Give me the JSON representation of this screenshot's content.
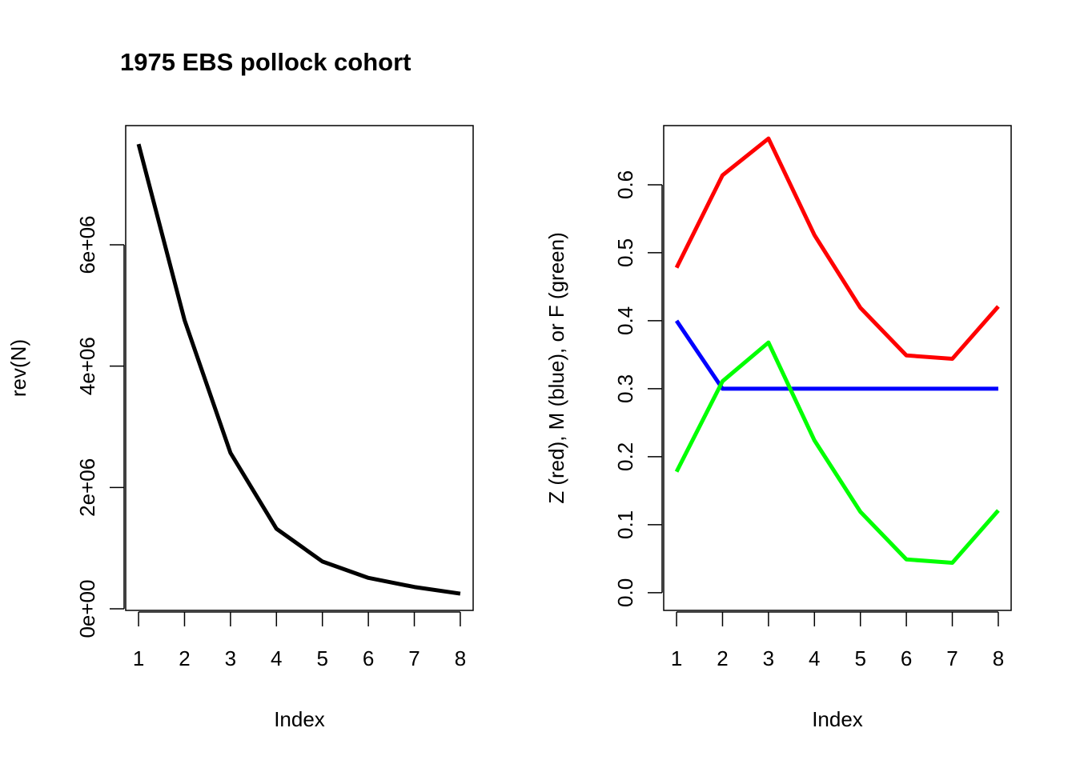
{
  "chart_data": [
    {
      "type": "line",
      "title": "1975 EBS pollock cohort",
      "x_label": "Index",
      "y_label": "rev(N)",
      "x": [
        1,
        2,
        3,
        4,
        5,
        6,
        7,
        8
      ],
      "series": [
        {
          "color": "#000000",
          "values": [
            7660000,
            4760000,
            2570000,
            1320000,
            780000,
            510000,
            360000,
            250000
          ]
        }
      ],
      "xlim": [
        0.72,
        8.28
      ],
      "xticks": [
        1,
        2,
        3,
        4,
        5,
        6,
        7,
        8
      ],
      "ylim": [
        -26000,
        7965000
      ],
      "yticks": [
        {
          "value": 0,
          "label": "0e+00"
        },
        {
          "value": 2000000,
          "label": "2e+06"
        },
        {
          "value": 4000000,
          "label": "4e+06"
        },
        {
          "value": 6000000,
          "label": "6e+06"
        }
      ]
    },
    {
      "type": "line",
      "x_label": "Index",
      "y_label": "Z (red), M (blue), or F (green)",
      "x": [
        1,
        2,
        3,
        4,
        5,
        6,
        7,
        8
      ],
      "series": [
        {
          "color": "#ff0000",
          "values": [
            0.478,
            0.614,
            0.668,
            0.526,
            0.419,
            0.349,
            0.344,
            0.421
          ]
        },
        {
          "color": "#0000ff",
          "values": [
            0.4,
            0.3,
            0.3,
            0.3,
            0.3,
            0.3,
            0.3,
            0.3
          ]
        },
        {
          "color": "#00ff00",
          "values": [
            0.178,
            0.311,
            0.368,
            0.224,
            0.119,
            0.049,
            0.044,
            0.121
          ]
        }
      ],
      "xlim": [
        0.72,
        8.28
      ],
      "xticks": [
        1,
        2,
        3,
        4,
        5,
        6,
        7,
        8
      ],
      "ylim": [
        -0.026,
        0.687
      ],
      "yticks": [
        {
          "value": 0,
          "label": "0.0"
        },
        0.1,
        0.2,
        0.3,
        0.4,
        0.5,
        0.6
      ]
    }
  ]
}
